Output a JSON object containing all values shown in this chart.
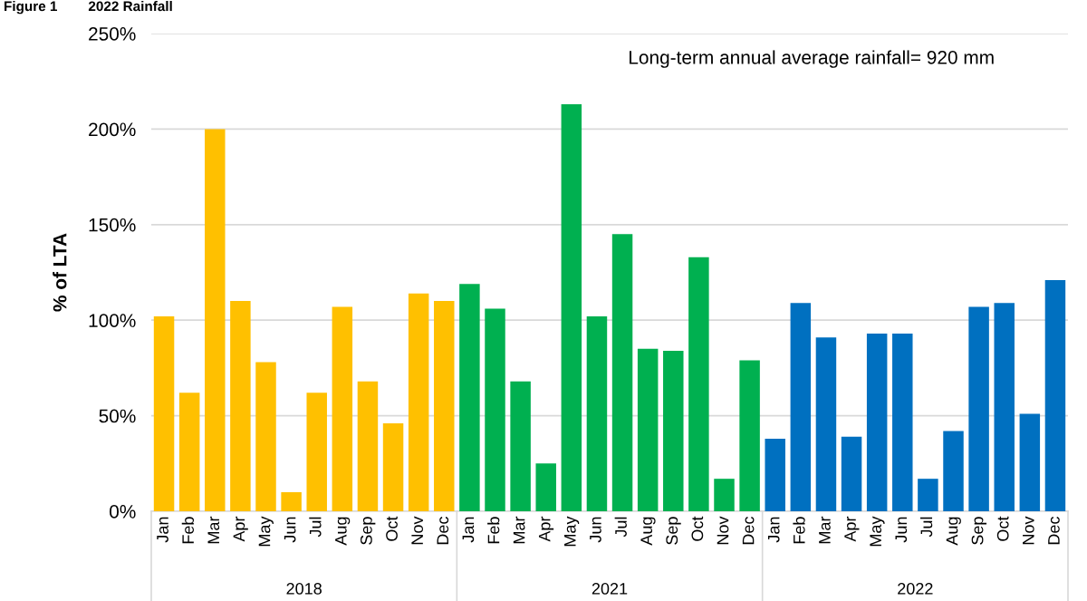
{
  "chart_data": {
    "type": "bar",
    "title": "Figure 1        2022 Rainfall",
    "ylabel": "% of LTA",
    "categories": [
      "Jan",
      "Feb",
      "Mar",
      "Apr",
      "May",
      "Jun",
      "Jul",
      "Aug",
      "Sep",
      "Oct",
      "Nov",
      "Dec",
      "Jan",
      "Feb",
      "Mar",
      "Apr",
      "May",
      "Jun",
      "Jul",
      "Aug",
      "Sep",
      "Oct",
      "Nov",
      "Dec",
      "Jan",
      "Feb",
      "Mar",
      "Apr",
      "May",
      "Jun",
      "Jul",
      "Aug",
      "Sep",
      "Oct",
      "Nov",
      "Dec"
    ],
    "values": [
      102,
      62,
      200,
      110,
      78,
      10,
      62,
      107,
      68,
      46,
      114,
      110,
      119,
      106,
      68,
      25,
      213,
      102,
      145,
      85,
      84,
      133,
      17,
      79,
      38,
      109,
      91,
      39,
      93,
      93,
      17,
      42,
      107,
      109,
      51,
      121
    ],
    "colors": [
      "#ffc000",
      "#ffc000",
      "#ffc000",
      "#ffc000",
      "#ffc000",
      "#ffc000",
      "#ffc000",
      "#ffc000",
      "#ffc000",
      "#ffc000",
      "#ffc000",
      "#ffc000",
      "#00b050",
      "#00b050",
      "#00b050",
      "#00b050",
      "#00b050",
      "#00b050",
      "#00b050",
      "#00b050",
      "#00b050",
      "#00b050",
      "#00b050",
      "#00b050",
      "#0070c0",
      "#0070c0",
      "#0070c0",
      "#0070c0",
      "#0070c0",
      "#0070c0",
      "#0070c0",
      "#0070c0",
      "#0070c0",
      "#0070c0",
      "#0070c0",
      "#0070c0"
    ],
    "ylim": [
      0,
      250
    ],
    "yticks": [
      {
        "value": 0,
        "label": "0%"
      },
      {
        "value": 50,
        "label": "50%"
      },
      {
        "value": 100,
        "label": "100%"
      },
      {
        "value": 150,
        "label": "150%"
      },
      {
        "value": 200,
        "label": "200%"
      },
      {
        "value": 250,
        "label": "250%"
      }
    ],
    "grid": "y",
    "annotations": [
      "Long-term annual average rainfall= 920 mm",
      "2018",
      "2021",
      "2022"
    ]
  }
}
